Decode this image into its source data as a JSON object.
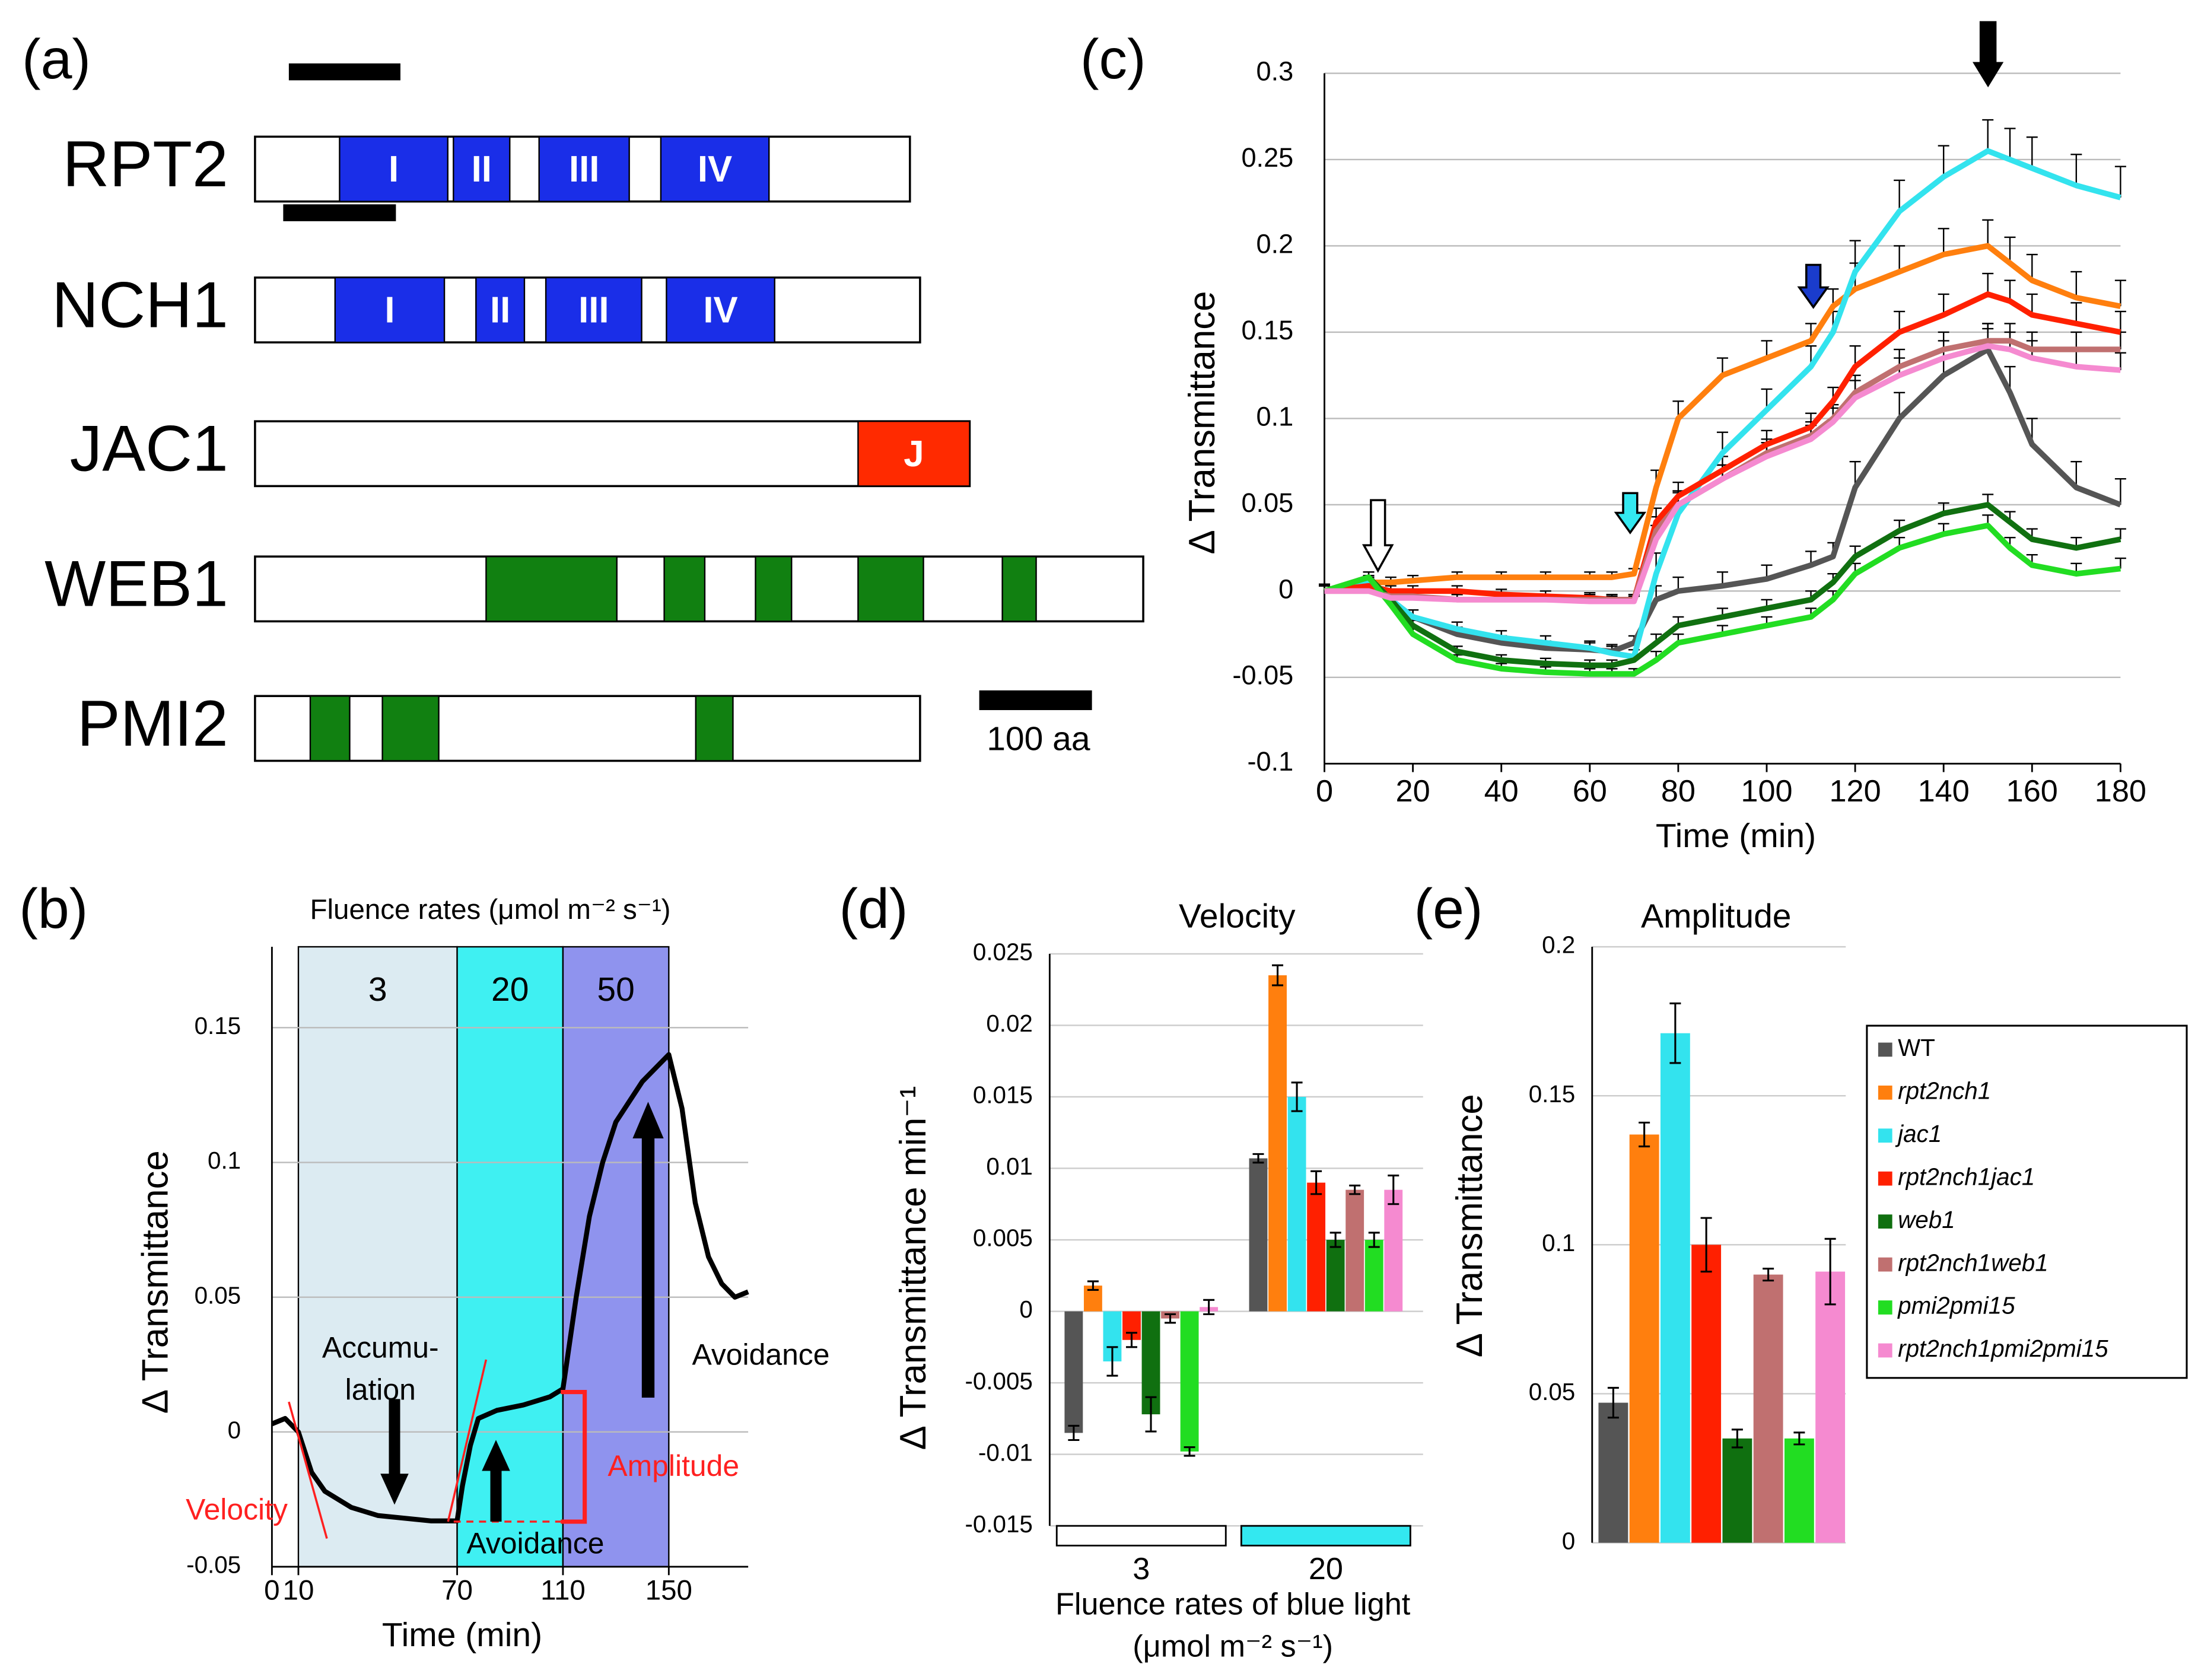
{
  "chart_data": [
    {
      "type": "domain",
      "label": "(a)",
      "proteins": [
        {
          "name": "RPT2",
          "length": 581,
          "color": "#1a2ee8",
          "bar": [
            30,
            129
          ],
          "domains": [
            {
              "start": 75,
              "end": 171,
              "label": "I"
            },
            {
              "start": 176,
              "end": 226,
              "label": "II"
            },
            {
              "start": 252,
              "end": 332,
              "label": "III"
            },
            {
              "start": 360,
              "end": 456,
              "label": "IV"
            }
          ]
        },
        {
          "name": "NCH1",
          "length": 590,
          "color": "#1a2ee8",
          "bar": [
            25,
            125
          ],
          "domains": [
            {
              "start": 71,
              "end": 168,
              "label": "I"
            },
            {
              "start": 196,
              "end": 239,
              "label": "II"
            },
            {
              "start": 258,
              "end": 343,
              "label": "III"
            },
            {
              "start": 365,
              "end": 461,
              "label": "IV"
            }
          ]
        },
        {
          "name": "JAC1",
          "length": 634,
          "color": "#ff2a00",
          "domains": [
            {
              "start": 535,
              "end": 634,
              "label": "J"
            }
          ]
        },
        {
          "name": "WEB1",
          "length": 788,
          "color": "#118011",
          "domains": [
            {
              "start": 205,
              "end": 321
            },
            {
              "start": 363,
              "end": 399
            },
            {
              "start": 444,
              "end": 476
            },
            {
              "start": 535,
              "end": 593
            },
            {
              "start": 663,
              "end": 693
            }
          ]
        },
        {
          "name": "PMI2",
          "length": 590,
          "color": "#118011",
          "domains": [
            {
              "start": 49,
              "end": 84
            },
            {
              "start": 113,
              "end": 163
            },
            {
              "start": 391,
              "end": 424
            }
          ]
        }
      ],
      "scale_bar": {
        "length": 100,
        "label": "100 aa"
      }
    },
    {
      "type": "line",
      "label": "(b)",
      "x_label": "Time (min)",
      "y_label": "Δ Transmittance",
      "regions_title": "Fluence rates (μmol m⁻² s⁻¹)",
      "regions": [
        {
          "start": 10,
          "end": 70,
          "label": "3",
          "color": "#dcebf2"
        },
        {
          "start": 70,
          "end": 110,
          "label": "20",
          "color": "#3ff0f2"
        },
        {
          "start": 110,
          "end": 150,
          "label": "50",
          "color": "#8f93ee"
        }
      ],
      "annotations": [
        "Accumu-",
        "lation",
        "Avoidance",
        "Avoidance",
        "Velocity",
        "Amplitude"
      ],
      "x": [
        0,
        5,
        10,
        15,
        20,
        30,
        40,
        50,
        60,
        70,
        72,
        75,
        78,
        85,
        95,
        105,
        110,
        115,
        120,
        125,
        130,
        140,
        150,
        155,
        160,
        165,
        170,
        175,
        180
      ],
      "series": [
        {
          "color": "#000000",
          "values": [
            0.003,
            0.005,
            0,
            -0.015,
            -0.022,
            -0.028,
            -0.031,
            -0.032,
            -0.033,
            -0.033,
            -0.02,
            -0.005,
            0.005,
            0.008,
            0.01,
            0.013,
            0.016,
            0.05,
            0.08,
            0.1,
            0.115,
            0.13,
            0.14,
            0.12,
            0.085,
            0.065,
            0.055,
            0.05,
            0.052
          ]
        }
      ],
      "xlim": [
        0,
        180
      ],
      "xticks": [
        0,
        10,
        70,
        110,
        150
      ],
      "ylim": [
        -0.05,
        0.18
      ],
      "yticks": [
        -0.05,
        0,
        0.05,
        0.1,
        0.15
      ],
      "grid": true
    },
    {
      "type": "line",
      "label": "(c)",
      "x_label": "Time (min)",
      "y_label": "Δ Transmittance",
      "x": [
        0,
        10,
        15,
        20,
        30,
        40,
        50,
        60,
        65,
        70,
        75,
        80,
        90,
        100,
        110,
        115,
        120,
        130,
        140,
        150,
        155,
        160,
        170,
        180
      ],
      "series": [
        {
          "color": "#555555",
          "values": [
            0,
            0.003,
            -0.005,
            -0.015,
            -0.025,
            -0.03,
            -0.033,
            -0.034,
            -0.035,
            -0.03,
            -0.005,
            0,
            0.003,
            0.007,
            0.015,
            0.02,
            0.06,
            0.1,
            0.125,
            0.14,
            0.115,
            0.085,
            0.06,
            0.05
          ],
          "errors": [
            0.004,
            0.004,
            0.004,
            0.004,
            0.004,
            0.004,
            0.004,
            0.004,
            0.004,
            0.004,
            0.008,
            0.008,
            0.008,
            0.008,
            0.008,
            0.008,
            0.015,
            0.015,
            0.015,
            0.015,
            0.015,
            0.015,
            0.015,
            0.015
          ]
        },
        {
          "color": "#ff7f0e",
          "values": [
            0,
            0.005,
            0.005,
            0.006,
            0.008,
            0.008,
            0.008,
            0.008,
            0.008,
            0.01,
            0.06,
            0.1,
            0.125,
            0.135,
            0.145,
            0.165,
            0.175,
            0.185,
            0.195,
            0.2,
            0.19,
            0.18,
            0.17,
            0.165
          ],
          "errors": [
            0.003,
            0.003,
            0.003,
            0.003,
            0.003,
            0.003,
            0.003,
            0.003,
            0.003,
            0.003,
            0.01,
            0.01,
            0.01,
            0.01,
            0.01,
            0.01,
            0.015,
            0.015,
            0.015,
            0.015,
            0.015,
            0.015,
            0.015,
            0.015
          ]
        },
        {
          "color": "#33e3ee",
          "values": [
            0,
            0.005,
            -0.005,
            -0.015,
            -0.022,
            -0.027,
            -0.03,
            -0.033,
            -0.036,
            -0.038,
            0.01,
            0.045,
            0.08,
            0.105,
            0.13,
            0.15,
            0.185,
            0.22,
            0.24,
            0.255,
            0.25,
            0.245,
            0.235,
            0.228
          ],
          "errors": [
            0.004,
            0.004,
            0.004,
            0.004,
            0.004,
            0.004,
            0.004,
            0.004,
            0.004,
            0.004,
            0.012,
            0.012,
            0.012,
            0.012,
            0.012,
            0.012,
            0.018,
            0.018,
            0.018,
            0.018,
            0.018,
            0.018,
            0.018,
            0.018
          ]
        },
        {
          "color": "#ff2000",
          "values": [
            0,
            0.003,
            0,
            0,
            0,
            -0.002,
            -0.003,
            -0.004,
            -0.005,
            -0.005,
            0.04,
            0.055,
            0.07,
            0.085,
            0.095,
            0.11,
            0.13,
            0.15,
            0.16,
            0.172,
            0.168,
            0.16,
            0.155,
            0.15
          ],
          "errors": [
            0.003,
            0.003,
            0.003,
            0.003,
            0.003,
            0.003,
            0.003,
            0.003,
            0.003,
            0.003,
            0.008,
            0.008,
            0.008,
            0.008,
            0.008,
            0.008,
            0.012,
            0.012,
            0.012,
            0.012,
            0.012,
            0.012,
            0.012,
            0.012
          ]
        },
        {
          "color": "#107010",
          "values": [
            0,
            0.008,
            -0.005,
            -0.02,
            -0.035,
            -0.04,
            -0.042,
            -0.043,
            -0.043,
            -0.04,
            -0.03,
            -0.02,
            -0.015,
            -0.01,
            -0.005,
            0.005,
            0.02,
            0.035,
            0.045,
            0.05,
            0.04,
            0.03,
            0.025,
            0.03
          ],
          "errors": [
            0.003,
            0.003,
            0.003,
            0.003,
            0.003,
            0.003,
            0.003,
            0.003,
            0.003,
            0.003,
            0.005,
            0.005,
            0.005,
            0.005,
            0.005,
            0.005,
            0.006,
            0.006,
            0.006,
            0.006,
            0.006,
            0.006,
            0.006,
            0.006
          ]
        },
        {
          "color": "#c07070",
          "values": [
            0,
            0,
            -0.003,
            -0.003,
            -0.005,
            -0.005,
            -0.005,
            -0.005,
            -0.005,
            -0.005,
            0.035,
            0.05,
            0.065,
            0.08,
            0.09,
            0.1,
            0.115,
            0.13,
            0.14,
            0.145,
            0.145,
            0.14,
            0.14,
            0.14
          ],
          "errors": [
            0.003,
            0.003,
            0.003,
            0.003,
            0.003,
            0.003,
            0.003,
            0.003,
            0.003,
            0.003,
            0.008,
            0.008,
            0.008,
            0.008,
            0.008,
            0.008,
            0.01,
            0.01,
            0.01,
            0.01,
            0.01,
            0.01,
            0.01,
            0.01
          ]
        },
        {
          "color": "#22dd22",
          "values": [
            0,
            0.008,
            -0.008,
            -0.025,
            -0.04,
            -0.045,
            -0.047,
            -0.048,
            -0.048,
            -0.048,
            -0.04,
            -0.03,
            -0.025,
            -0.02,
            -0.015,
            -0.005,
            0.01,
            0.025,
            0.033,
            0.038,
            0.025,
            0.015,
            0.01,
            0.013
          ],
          "errors": [
            0.003,
            0.003,
            0.003,
            0.003,
            0.003,
            0.003,
            0.003,
            0.003,
            0.003,
            0.003,
            0.005,
            0.005,
            0.005,
            0.005,
            0.005,
            0.005,
            0.006,
            0.006,
            0.006,
            0.006,
            0.006,
            0.006,
            0.006,
            0.006
          ]
        },
        {
          "color": "#f58ad0",
          "values": [
            0,
            0,
            -0.004,
            -0.004,
            -0.005,
            -0.005,
            -0.005,
            -0.006,
            -0.006,
            -0.006,
            0.03,
            0.05,
            0.065,
            0.078,
            0.088,
            0.098,
            0.112,
            0.125,
            0.135,
            0.142,
            0.14,
            0.135,
            0.13,
            0.128
          ],
          "errors": [
            0.003,
            0.003,
            0.003,
            0.003,
            0.003,
            0.003,
            0.003,
            0.003,
            0.003,
            0.003,
            0.008,
            0.008,
            0.008,
            0.008,
            0.008,
            0.008,
            0.01,
            0.01,
            0.01,
            0.01,
            0.01,
            0.01,
            0.01,
            0.01
          ]
        }
      ],
      "xlim": [
        0,
        180
      ],
      "xticks": [
        0,
        20,
        40,
        60,
        80,
        100,
        120,
        140,
        160,
        180
      ],
      "ylim": [
        -0.1,
        0.3
      ],
      "yticks": [
        -0.1,
        -0.05,
        0,
        0.05,
        0.1,
        0.15,
        0.2,
        0.25,
        0.3
      ],
      "grid": true
    },
    {
      "type": "bar",
      "label": "(d)",
      "title": "Velocity",
      "y_label": "Δ Transmittance min⁻¹",
      "x_label": [
        "Fluence rates of blue light",
        "(μmol m⁻² s⁻¹)"
      ],
      "categories": [
        "3",
        "20"
      ],
      "series": [
        {
          "color": "#555555",
          "values": [
            -0.0085,
            0.0107
          ],
          "errors": [
            0.0005,
            0.0003
          ]
        },
        {
          "color": "#ff7f0e",
          "values": [
            0.0018,
            0.0235
          ],
          "errors": [
            0.0003,
            0.0007
          ]
        },
        {
          "color": "#33e3ee",
          "values": [
            -0.0035,
            0.015
          ],
          "errors": [
            0.001,
            0.001
          ]
        },
        {
          "color": "#ff2000",
          "values": [
            -0.002,
            0.009
          ],
          "errors": [
            0.0005,
            0.0008
          ]
        },
        {
          "color": "#107010",
          "values": [
            -0.0072,
            0.005
          ],
          "errors": [
            0.0012,
            0.0005
          ]
        },
        {
          "color": "#c07070",
          "values": [
            -0.0005,
            0.0085
          ],
          "errors": [
            0.0003,
            0.0003
          ]
        },
        {
          "color": "#22dd22",
          "values": [
            -0.0098,
            0.005
          ],
          "errors": [
            0.0003,
            0.0005
          ]
        },
        {
          "color": "#f58ad0",
          "values": [
            0.0003,
            0.0085
          ],
          "errors": [
            0.0005,
            0.001
          ]
        }
      ],
      "ylim": [
        -0.015,
        0.025
      ],
      "yticks": [
        -0.015,
        -0.01,
        -0.005,
        0,
        0.005,
        0.01,
        0.015,
        0.02,
        0.025
      ],
      "grid": true
    },
    {
      "type": "bar",
      "label": "(e)",
      "title": "Amplitude",
      "y_label": "Δ Transmittance",
      "series": [
        {
          "name": "WT",
          "color": "#555555",
          "values": [
            0.047
          ],
          "errors": [
            0.005
          ]
        },
        {
          "name": "rpt2nch1",
          "color": "#ff7f0e",
          "values": [
            0.137
          ],
          "errors": [
            0.004
          ]
        },
        {
          "name": "jac1",
          "color": "#33e3ee",
          "values": [
            0.171
          ],
          "errors": [
            0.01
          ]
        },
        {
          "name": "rpt2nch1jac1",
          "color": "#ff2000",
          "values": [
            0.1
          ],
          "errors": [
            0.009
          ]
        },
        {
          "name": "web1",
          "color": "#107010",
          "values": [
            0.035
          ],
          "errors": [
            0.003
          ]
        },
        {
          "name": "rpt2nch1web1",
          "color": "#c07070",
          "values": [
            0.09
          ],
          "errors": [
            0.002
          ]
        },
        {
          "name": "pmi2pmi15",
          "color": "#22dd22",
          "values": [
            0.035
          ],
          "errors": [
            0.002
          ]
        },
        {
          "name": "rpt2nch1pmi2pmi15",
          "color": "#f58ad0",
          "values": [
            0.091
          ],
          "errors": [
            0.011
          ]
        }
      ],
      "ylim": [
        0,
        0.2
      ],
      "yticks": [
        0,
        0.05,
        0.1,
        0.15,
        0.2
      ],
      "grid": true,
      "legend": "right"
    }
  ]
}
